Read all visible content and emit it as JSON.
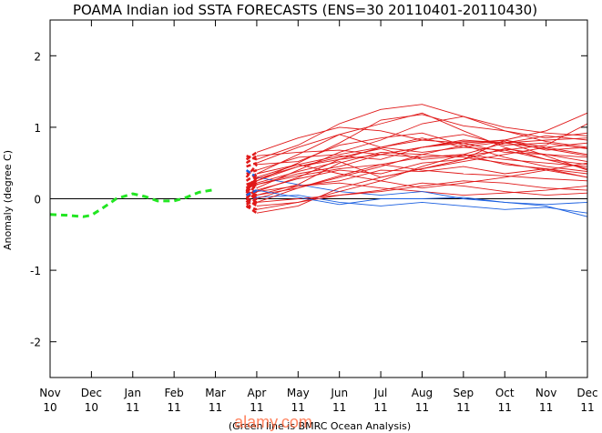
{
  "chart_data": {
    "type": "line",
    "title": "POAMA Indian iod SSTA FORECASTS (ENS=30 20110401-20110430)",
    "xlabel": "(Green line is BMRC Ocean Analysis)",
    "ylabel": "Anomaly (degree C)",
    "ylim": [
      -2.5,
      2.5
    ],
    "y_ticks": [
      "-2",
      "-1",
      "0",
      "1",
      "2"
    ],
    "y_tick_values": [
      -2,
      -1,
      0,
      1,
      2
    ],
    "x_tick_labels": [
      {
        "month": "Nov",
        "year": "10"
      },
      {
        "month": "Dec",
        "year": "10"
      },
      {
        "month": "Jan",
        "year": "11"
      },
      {
        "month": "Feb",
        "year": "11"
      },
      {
        "month": "Mar",
        "year": "11"
      },
      {
        "month": "Apr",
        "year": "11"
      },
      {
        "month": "May",
        "year": "11"
      },
      {
        "month": "Jun",
        "year": "11"
      },
      {
        "month": "Jul",
        "year": "11"
      },
      {
        "month": "Aug",
        "year": "11"
      },
      {
        "month": "Sep",
        "year": "11"
      },
      {
        "month": "Oct",
        "year": "11"
      },
      {
        "month": "Nov",
        "year": "11"
      },
      {
        "month": "Dec",
        "year": "11"
      }
    ],
    "grid": false,
    "zero_line": true,
    "colors": {
      "analysis": "#22e622",
      "positive_member": "#e01818",
      "negative_member": "#1a5fe0",
      "axis": "#000000"
    },
    "analysis_series": {
      "name": "BMRC Ocean Analysis",
      "x": [
        0.0,
        0.4,
        0.8,
        1.0,
        1.3,
        1.6,
        2.0,
        2.3,
        2.6,
        3.0,
        3.3,
        3.6,
        4.0
      ],
      "y": [
        -0.22,
        -0.23,
        -0.25,
        -0.23,
        -0.12,
        0.0,
        0.07,
        0.03,
        -0.03,
        -0.03,
        0.02,
        0.09,
        0.13
      ]
    },
    "series": [
      {
        "values": [
          0.6,
          0.55,
          0.75,
          1.05,
          1.25,
          1.32,
          1.15,
          0.95,
          0.85,
          0.92
        ]
      },
      {
        "values": [
          0.45,
          0.5,
          0.72,
          0.9,
          1.05,
          1.2,
          0.95,
          0.72,
          0.55,
          0.48
        ]
      },
      {
        "values": [
          0.35,
          0.4,
          0.58,
          0.62,
          0.72,
          0.82,
          0.78,
          0.65,
          0.62,
          0.58
        ]
      },
      {
        "values": [
          0.3,
          0.48,
          0.52,
          0.75,
          0.85,
          0.92,
          0.75,
          0.82,
          0.68,
          0.72
        ]
      },
      {
        "values": [
          0.2,
          0.25,
          0.45,
          0.58,
          0.7,
          0.55,
          0.6,
          0.68,
          0.55,
          0.42
        ]
      },
      {
        "values": [
          0.1,
          0.2,
          0.32,
          0.42,
          0.48,
          0.4,
          0.35,
          0.32,
          0.28,
          0.25
        ]
      },
      {
        "values": [
          0.05,
          0.1,
          0.18,
          0.22,
          0.15,
          0.1,
          0.05,
          0.08,
          0.12,
          0.18
        ]
      },
      {
        "values": [
          -0.05,
          0.02,
          0.05,
          -0.05,
          -0.1,
          -0.05,
          -0.1,
          -0.15,
          -0.12,
          -0.2
        ]
      },
      {
        "values": [
          0.15,
          0.22,
          0.38,
          0.52,
          0.3,
          0.42,
          0.55,
          0.82,
          0.72,
          0.62
        ]
      },
      {
        "values": [
          0.25,
          0.35,
          0.48,
          0.35,
          0.25,
          0.15,
          0.22,
          0.3,
          0.4,
          0.5
        ]
      },
      {
        "values": [
          0.5,
          0.6,
          0.65,
          0.68,
          0.62,
          0.72,
          0.8,
          0.78,
          0.82,
          0.85
        ]
      },
      {
        "values": [
          0.4,
          0.3,
          0.2,
          0.1,
          0.05,
          0.1,
          0.0,
          -0.05,
          -0.1,
          -0.25
        ]
      },
      {
        "values": [
          0.0,
          -0.05,
          0.0,
          0.05,
          0.12,
          0.22,
          0.18,
          0.1,
          0.05,
          0.08
        ]
      },
      {
        "values": [
          0.55,
          0.65,
          0.85,
          1.0,
          0.95,
          0.82,
          0.9,
          0.75,
          0.78,
          0.7
        ]
      },
      {
        "values": [
          0.1,
          0.05,
          0.15,
          0.3,
          0.45,
          0.62,
          0.75,
          0.58,
          0.45,
          0.38
        ]
      },
      {
        "values": [
          -0.1,
          -0.15,
          -0.05,
          0.1,
          0.25,
          0.45,
          0.62,
          0.78,
          0.88,
          0.82
        ]
      },
      {
        "values": [
          0.0,
          0.15,
          0.4,
          0.65,
          0.82,
          1.05,
          1.15,
          1.0,
          0.92,
          0.88
        ]
      },
      {
        "values": [
          -0.05,
          0.1,
          0.3,
          0.55,
          0.72,
          0.85,
          0.72,
          0.68,
          0.75,
          1.05
        ]
      },
      {
        "values": [
          0.05,
          0.2,
          0.35,
          0.45,
          0.62,
          0.72,
          0.78,
          0.82,
          0.95,
          1.2
        ]
      },
      {
        "values": [
          -0.12,
          -0.05,
          0.15,
          0.32,
          0.48,
          0.58,
          0.62,
          0.55,
          0.5,
          0.45
        ]
      },
      {
        "values": [
          0.12,
          0.25,
          0.5,
          0.78,
          1.1,
          1.18,
          1.02,
          0.95,
          0.8,
          0.72
        ]
      },
      {
        "values": [
          -0.08,
          0.0,
          0.18,
          0.25,
          0.4,
          0.38,
          0.45,
          0.35,
          0.42,
          0.3
        ]
      },
      {
        "values": [
          0.0,
          -0.1,
          -0.05,
          0.05,
          0.1,
          0.18,
          0.25,
          0.22,
          0.15,
          0.12
        ]
      },
      {
        "values": [
          0.08,
          0.3,
          0.48,
          0.6,
          0.55,
          0.72,
          0.82,
          0.78,
          0.7,
          0.6
        ]
      },
      {
        "values": [
          -0.05,
          0.05,
          0.2,
          0.5,
          0.65,
          0.62,
          0.58,
          0.5,
          0.4,
          0.3
        ]
      },
      {
        "values": [
          0.02,
          0.12,
          0.28,
          0.4,
          0.35,
          0.5,
          0.55,
          0.7,
          0.62,
          0.52
        ]
      },
      {
        "values": [
          -0.1,
          -0.2,
          -0.1,
          0.15,
          0.3,
          0.42,
          0.52,
          0.62,
          0.72,
          0.78
        ]
      },
      {
        "values": [
          0.1,
          0.35,
          0.62,
          0.9,
          0.72,
          0.65,
          0.72,
          0.8,
          0.6,
          0.4
        ]
      },
      {
        "values": [
          0.05,
          0.12,
          0.02,
          -0.08,
          0.0,
          0.0,
          0.02,
          -0.05,
          -0.08,
          -0.05
        ]
      },
      {
        "values": [
          0.15,
          0.28,
          0.45,
          0.55,
          0.62,
          0.58,
          0.62,
          0.48,
          0.42,
          0.35
        ]
      }
    ],
    "forecast_x": [
      4.75,
      5.0,
      6.0,
      7.0,
      8.0,
      9.0,
      10.0,
      11.0,
      12.0,
      13.0
    ]
  },
  "watermark": "alamy.com"
}
